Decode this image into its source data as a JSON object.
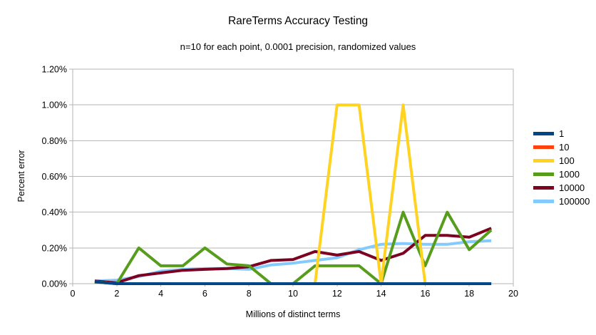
{
  "chart_data": {
    "type": "line",
    "title": "RareTerms Accuracy Testing",
    "subtitle": "n=10 for each point, 0.0001 precision, randomized values",
    "xlabel": "Millions of distinct terms",
    "ylabel": "Percent error",
    "xlim": [
      0,
      20
    ],
    "ylim": [
      0,
      1.2
    ],
    "grid": true,
    "legend_position": "right",
    "x_tick_labels": [
      "0",
      "2",
      "4",
      "6",
      "8",
      "10",
      "12",
      "14",
      "16",
      "18",
      "20"
    ],
    "y_tick_labels": [
      "0.00%",
      "0.20%",
      "0.40%",
      "0.60%",
      "0.80%",
      "1.00%",
      "1.20%"
    ],
    "x": [
      1,
      2,
      3,
      4,
      5,
      6,
      7,
      8,
      9,
      10,
      11,
      12,
      13,
      14,
      15,
      16,
      17,
      18,
      19
    ],
    "series": [
      {
        "name": "1",
        "color": "#004586",
        "values": [
          0.01,
          0.0,
          0.0,
          0.0,
          0.0,
          0.0,
          0.0,
          0.0,
          0.0,
          0.0,
          0.0,
          0.0,
          0.0,
          0.0,
          0.0,
          0.0,
          0.0,
          0.0,
          0.0
        ]
      },
      {
        "name": "10",
        "color": "#ff420e",
        "values": [
          0.01,
          0.0,
          0.0,
          0.0,
          0.0,
          0.0,
          0.0,
          0.0,
          0.0,
          0.0,
          0.0,
          0.0,
          0.0,
          0.0,
          0.0,
          0.0,
          0.0,
          0.0,
          0.0
        ]
      },
      {
        "name": "100",
        "color": "#ffd320",
        "values": [
          0.01,
          0.0,
          0.0,
          0.0,
          0.0,
          0.0,
          0.0,
          0.0,
          0.0,
          0.0,
          0.0,
          1.0,
          1.0,
          0.0,
          1.0,
          0.0,
          0.0,
          0.0,
          0.0
        ]
      },
      {
        "name": "1000",
        "color": "#579d1c",
        "values": [
          0.01,
          0.0,
          0.2,
          0.1,
          0.1,
          0.2,
          0.11,
          0.1,
          0.0,
          0.0,
          0.1,
          0.1,
          0.1,
          0.0,
          0.4,
          0.1,
          0.4,
          0.19,
          0.3
        ]
      },
      {
        "name": "10000",
        "color": "#7e0021",
        "values": [
          0.015,
          0.005,
          0.045,
          0.06,
          0.075,
          0.08,
          0.085,
          0.095,
          0.13,
          0.135,
          0.18,
          0.16,
          0.18,
          0.13,
          0.17,
          0.27,
          0.27,
          0.26,
          0.31
        ]
      },
      {
        "name": "100000",
        "color": "#83caff",
        "values": [
          0.015,
          0.02,
          0.04,
          0.07,
          0.08,
          0.085,
          0.085,
          0.08,
          0.105,
          0.115,
          0.13,
          0.145,
          0.19,
          0.22,
          0.225,
          0.22,
          0.22,
          0.235,
          0.24
        ]
      }
    ]
  },
  "style_colors": {
    "grid": "#b6b6b6",
    "axis_text": "#000000",
    "background": "#ffffff"
  }
}
